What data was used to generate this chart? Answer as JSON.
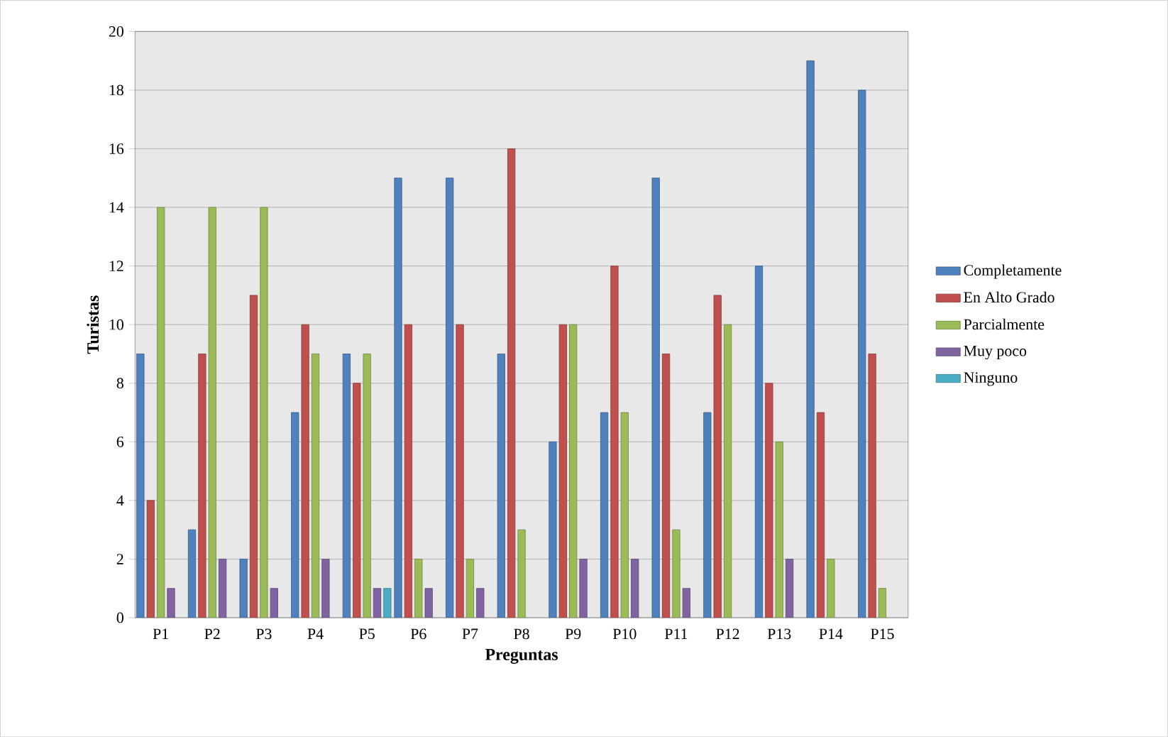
{
  "chart_data": {
    "type": "bar",
    "xlabel": "Preguntas",
    "ylabel": "Turistas",
    "categories": [
      "P1",
      "P2",
      "P3",
      "P4",
      "P5",
      "P6",
      "P7",
      "P8",
      "P9",
      "P10",
      "P11",
      "P12",
      "P13",
      "P14",
      "P15"
    ],
    "series": [
      {
        "name": "Completamente",
        "color": "#4f81bd",
        "values": [
          9,
          3,
          2,
          7,
          9,
          15,
          15,
          9,
          6,
          7,
          15,
          7,
          12,
          19,
          18
        ]
      },
      {
        "name": "En Alto Grado",
        "color": "#c0504d",
        "values": [
          4,
          9,
          11,
          10,
          8,
          10,
          10,
          16,
          10,
          12,
          9,
          11,
          8,
          7,
          9
        ]
      },
      {
        "name": "Parcialmente",
        "color": "#9bbb59",
        "values": [
          14,
          14,
          14,
          9,
          9,
          2,
          2,
          3,
          10,
          7,
          3,
          10,
          6,
          2,
          1
        ]
      },
      {
        "name": "Muy poco",
        "color": "#8064a2",
        "values": [
          1,
          2,
          1,
          2,
          1,
          1,
          1,
          null,
          2,
          2,
          1,
          null,
          2,
          null,
          null
        ]
      },
      {
        "name": "Ninguno",
        "color": "#4bacc6",
        "values": [
          null,
          null,
          null,
          null,
          1,
          null,
          null,
          null,
          null,
          null,
          null,
          null,
          null,
          null,
          null
        ]
      }
    ],
    "ylim": [
      0,
      20
    ],
    "yticks": [
      0,
      2,
      4,
      6,
      8,
      10,
      12,
      14,
      16,
      18,
      20
    ],
    "grid": "y",
    "legend": "right"
  }
}
